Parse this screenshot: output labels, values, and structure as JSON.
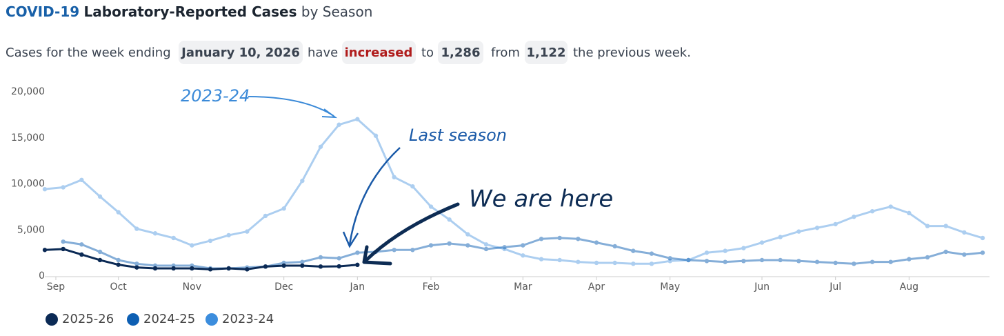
{
  "header": {
    "title_highlight": "COVID-19",
    "title_main": "Laboratory-Reported Cases",
    "title_rest": "by Season"
  },
  "summary": {
    "lead": "Cases for the week ending",
    "date": "January 10, 2026",
    "have": "have",
    "trend": "increased",
    "to": "to",
    "current": "1,286",
    "from": "from",
    "previous": "1,122",
    "tail": "the previous week."
  },
  "chart_data": {
    "type": "line",
    "x": [
      0,
      1,
      2,
      3,
      4,
      5,
      6,
      7,
      8,
      9,
      10,
      11,
      12,
      13,
      14,
      15,
      16,
      17,
      18,
      19,
      20,
      21,
      22,
      23,
      24,
      25,
      26,
      27,
      28,
      29,
      30,
      31,
      32,
      33,
      34,
      35,
      36,
      37,
      38,
      39,
      40,
      41,
      42,
      43,
      44,
      45,
      46,
      47,
      48,
      49,
      50,
      51
    ],
    "xlim": [
      0,
      51
    ],
    "xticks": [
      {
        "value": 0.6,
        "label": "Sep"
      },
      {
        "value": 4,
        "label": "Oct"
      },
      {
        "value": 8,
        "label": "Nov"
      },
      {
        "value": 13,
        "label": "Dec"
      },
      {
        "value": 17,
        "label": "Jan"
      },
      {
        "value": 21,
        "label": "Feb"
      },
      {
        "value": 26,
        "label": "Mar"
      },
      {
        "value": 30,
        "label": "Apr"
      },
      {
        "value": 34,
        "label": "May"
      },
      {
        "value": 39,
        "label": "Jun"
      },
      {
        "value": 43,
        "label": "Jul"
      },
      {
        "value": 47,
        "label": "Aug"
      }
    ],
    "ylim": [
      0,
      20000
    ],
    "yticks": [
      0,
      {
        "value": 5000,
        "label": "5,000"
      },
      {
        "value": 10000,
        "label": "10,000"
      },
      {
        "value": 15000,
        "label": "15,000"
      },
      {
        "value": 20000,
        "label": "20,000"
      }
    ],
    "series": [
      {
        "name": "2025-26",
        "color": "#0b2a55",
        "opacity": 1,
        "values": [
          2900,
          3000,
          2400,
          1800,
          1300,
          1000,
          900,
          900,
          900,
          800,
          900,
          800,
          1100,
          1200,
          1200,
          1100,
          1122,
          1286,
          null,
          null,
          null,
          null,
          null,
          null,
          null,
          null,
          null,
          null,
          null,
          null,
          null,
          null,
          null,
          null,
          null,
          null,
          null,
          null,
          null,
          null,
          null,
          null,
          null,
          null,
          null,
          null,
          null,
          null,
          null,
          null,
          null,
          null
        ]
      },
      {
        "name": "2024-25",
        "color": "#0d5fb3",
        "opacity": 0.5,
        "values": [
          null,
          3800,
          3500,
          2700,
          1800,
          1400,
          1200,
          1200,
          1200,
          900,
          900,
          1000,
          1100,
          1500,
          1600,
          2100,
          2000,
          2600,
          2700,
          2900,
          2900,
          3400,
          3600,
          3400,
          3000,
          3200,
          3400,
          4100,
          4200,
          4100,
          3700,
          3300,
          2800,
          2500,
          2000,
          1800,
          1700,
          1600,
          1700,
          1800,
          1800,
          1700,
          1600,
          1500,
          1400,
          1600,
          1600,
          1900,
          2100,
          2700,
          2400,
          2600
        ]
      },
      {
        "name": "2023-24",
        "color": "#3c8ddd",
        "opacity": 0.42,
        "values": [
          9500,
          9700,
          10500,
          8700,
          7000,
          5200,
          4700,
          4200,
          3400,
          3900,
          4500,
          4900,
          6600,
          7400,
          10400,
          14100,
          16500,
          17100,
          15300,
          10800,
          9800,
          7600,
          6200,
          4600,
          3500,
          3000,
          2300,
          1900,
          1800,
          1600,
          1500,
          1500,
          1400,
          1400,
          1700,
          1800,
          2600,
          2800,
          3100,
          3700,
          4300,
          4900,
          5300,
          5700,
          6500,
          7100,
          7600,
          6900,
          5500,
          5500,
          4800,
          4200
        ]
      }
    ],
    "annotations": [
      "2023-24",
      "Last season",
      "We are here"
    ]
  }
}
